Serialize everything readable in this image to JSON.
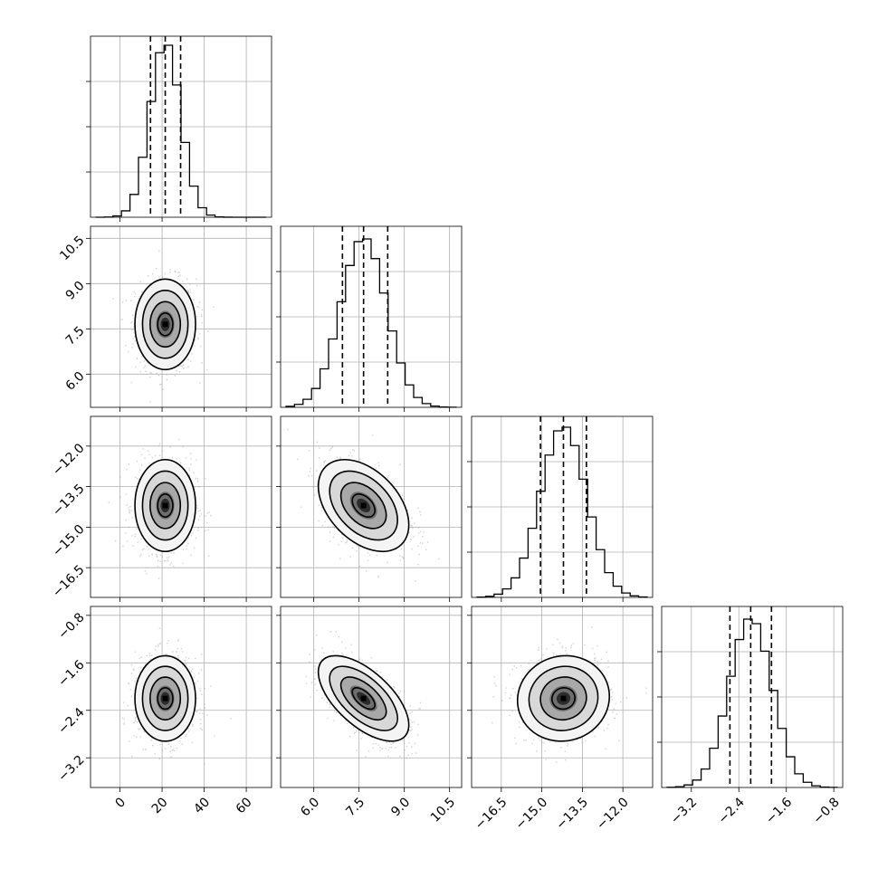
{
  "chart_data": {
    "type": "corner",
    "parameters": [
      {
        "mean": 21.5,
        "std": 7.2,
        "quantiles": [
          14.5,
          21.5,
          28.8
        ],
        "range": [
          -14,
          72
        ],
        "ticks": [
          0,
          20,
          40,
          60
        ],
        "tick_labels": [
          "0",
          "20",
          "40",
          "60"
        ],
        "hist_peak": 0.95
      },
      {
        "mean": 7.65,
        "std": 0.75,
        "quantiles": [
          6.95,
          7.65,
          8.45
        ],
        "range": [
          4.9,
          10.9
        ],
        "ticks": [
          6.0,
          7.5,
          9.0,
          10.5
        ],
        "tick_labels": [
          "6.0",
          "7.5",
          "9.0",
          "10.5"
        ],
        "hist_peak": 0.93
      },
      {
        "mean": -14.2,
        "std": 0.85,
        "quantiles": [
          -15.05,
          -14.2,
          -13.35
        ],
        "range": [
          -17.6,
          -10.9
        ],
        "ticks": [
          -16.5,
          -15.0,
          -13.5,
          -12.0
        ],
        "tick_labels": [
          "−16.5",
          "−15.0",
          "−13.5",
          "−12.0"
        ],
        "hist_peak": 0.94
      },
      {
        "mean": -2.2,
        "std": 0.36,
        "quantiles": [
          -2.55,
          -2.2,
          -1.85
        ],
        "range": [
          -3.7,
          -0.65
        ],
        "ticks": [
          -3.2,
          -2.4,
          -1.6,
          -0.8
        ],
        "tick_labels": [
          "−3.2",
          "−2.4",
          "−1.6",
          "−0.8"
        ],
        "hist_peak": 0.93
      }
    ],
    "correlations": {
      "1-0": 0.0,
      "2-0": 0.0,
      "2-1": -0.42,
      "3-0": 0.0,
      "3-1": -0.62,
      "3-2": 0.05
    },
    "histogram_ticks": 3,
    "quantile_lines": "dashed",
    "contour_levels": [
      "0.5 sigma",
      "1 sigma",
      "1.5 sigma",
      "2 sigma"
    ],
    "grid": true,
    "colors": {
      "points": "#9a9a9a",
      "density_dark": "#000000",
      "density_light": "#ffffff",
      "line": "#000000",
      "grid": "#b0b0b0"
    },
    "xlabel": "",
    "ylabel": ""
  }
}
